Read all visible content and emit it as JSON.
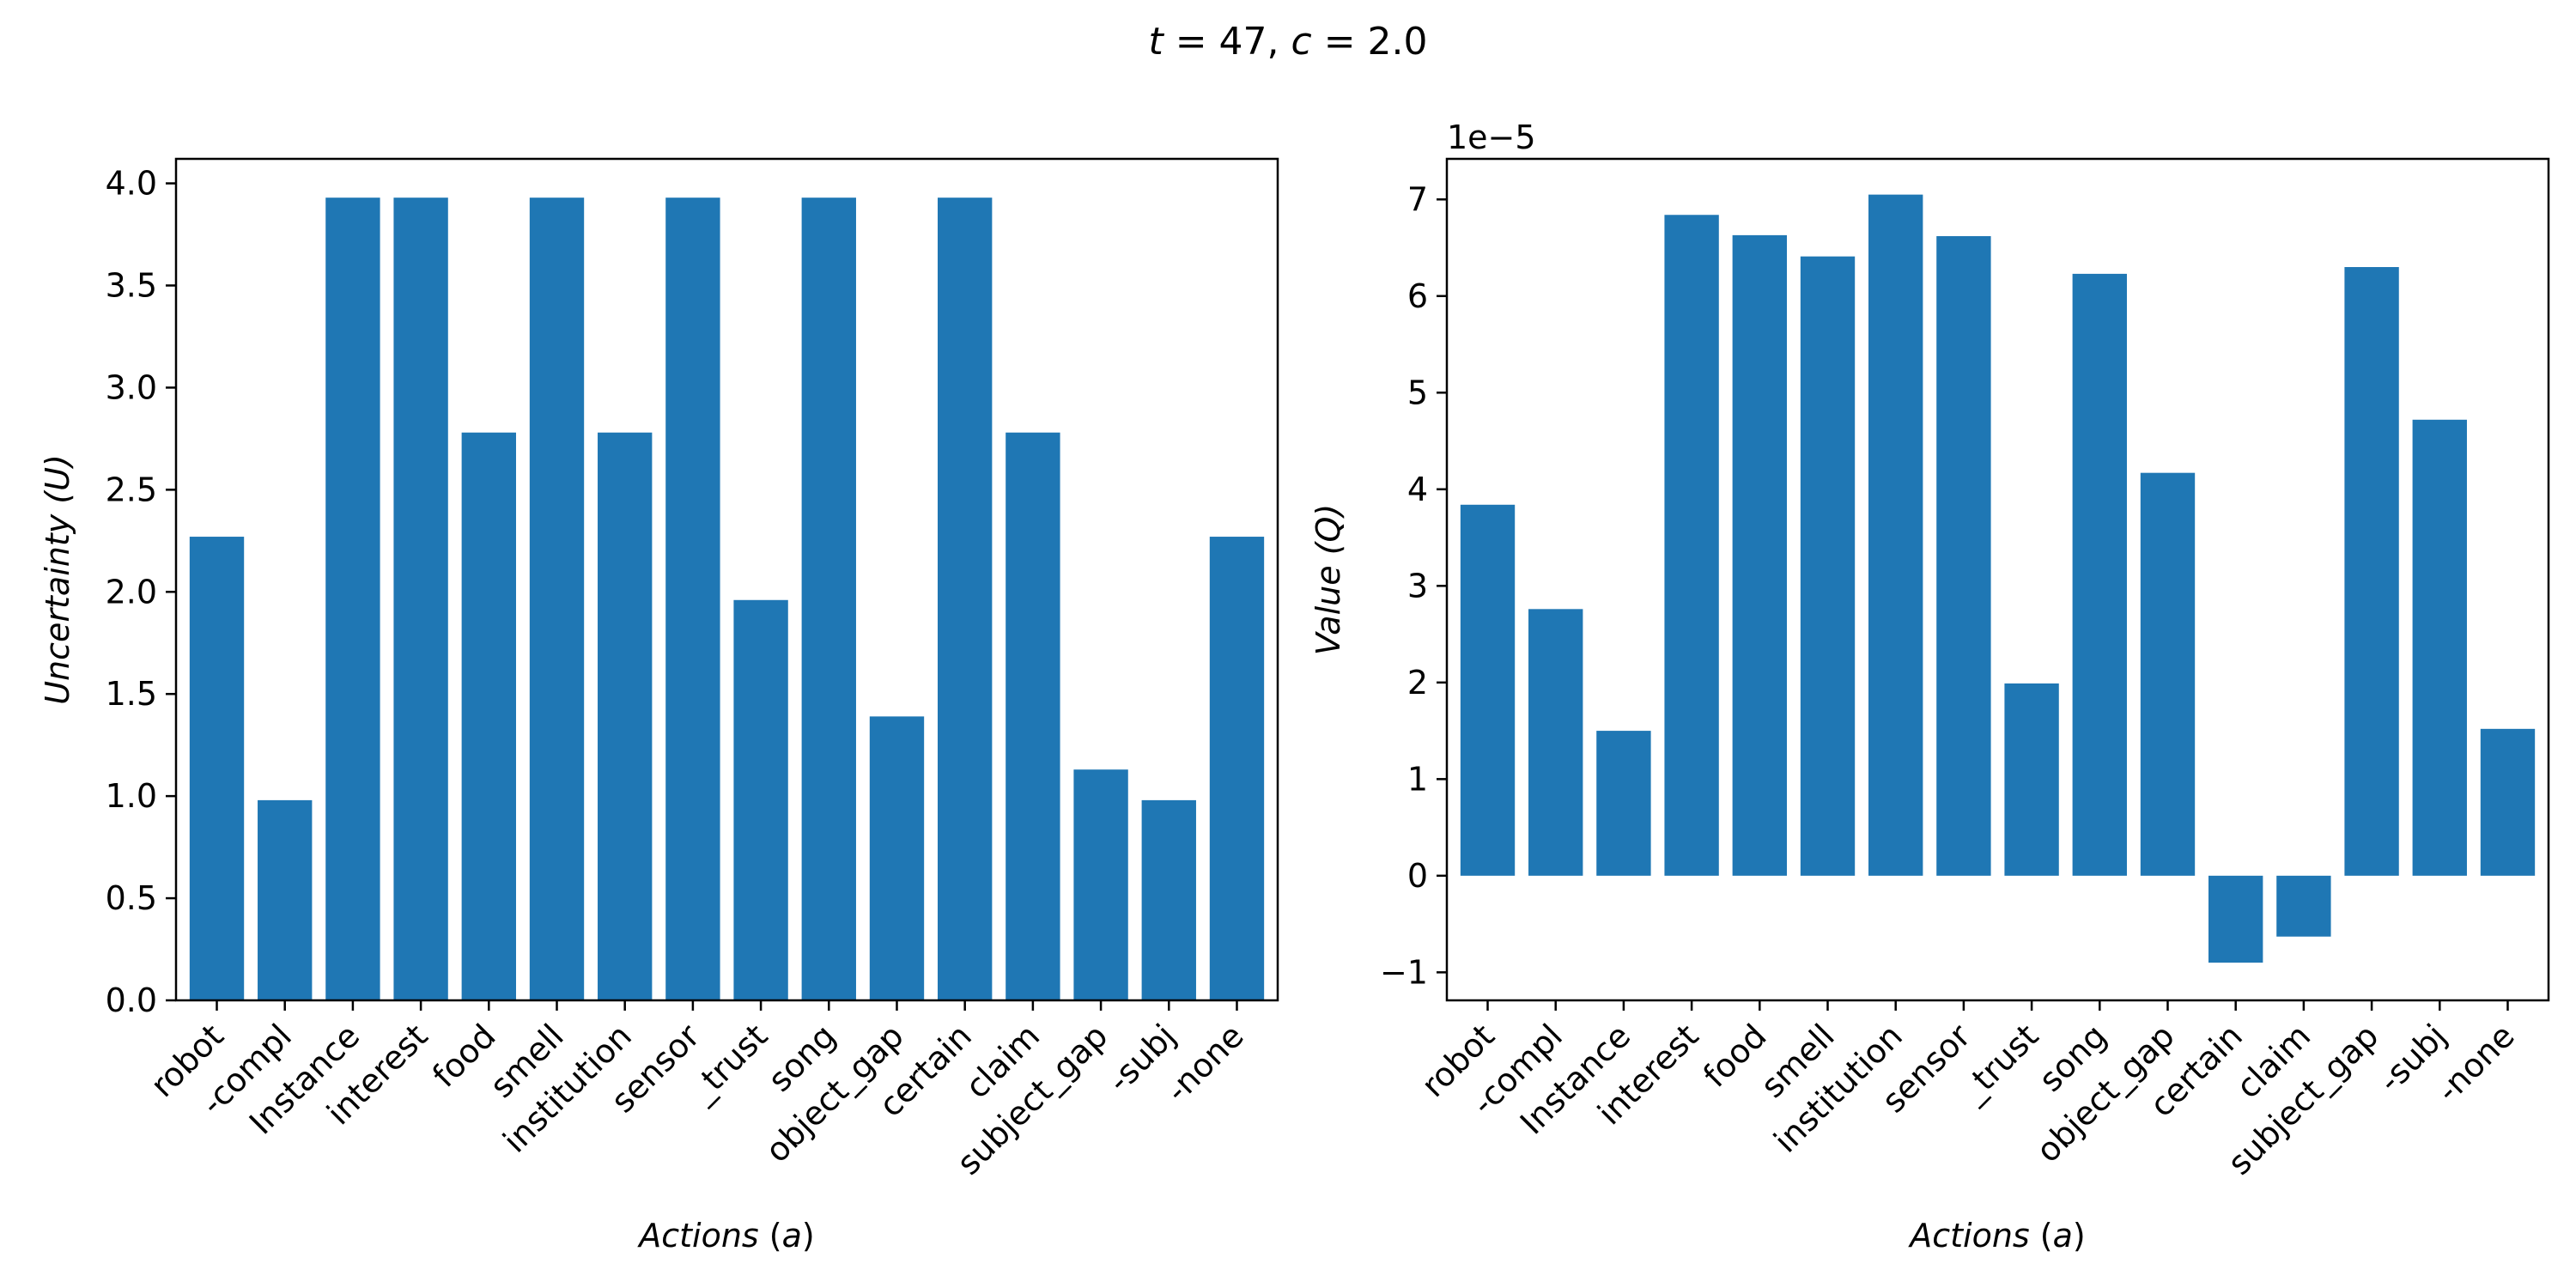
{
  "figure": {
    "suptitle": {
      "t_var": "t",
      "t_val": " = 47, ",
      "c_var": "c",
      "c_val": " = 2.0"
    }
  },
  "colors": {
    "bar": "#1f77b4",
    "axis": "#000000",
    "background": "#ffffff"
  },
  "chart_data": [
    {
      "type": "bar",
      "title": "",
      "xlabel": {
        "main": "Actions",
        "paren_open": " (",
        "sym": "a",
        "paren_close": ")"
      },
      "ylabel": {
        "main": "Uncertainty",
        "paren_open": " (",
        "sym": "U",
        "paren_close": ")"
      },
      "categories": [
        "robot",
        "-compl",
        "Instance",
        "interest",
        "food",
        "smell",
        "institution",
        "sensor",
        "_trust",
        "song",
        "object_gap",
        "certain",
        "claim",
        "subject_gap",
        "-subj",
        "-none"
      ],
      "values": [
        2.27,
        0.98,
        3.93,
        3.93,
        2.78,
        3.93,
        2.78,
        3.93,
        1.96,
        3.93,
        1.39,
        3.93,
        2.78,
        1.13,
        0.98,
        2.27
      ],
      "ylim": [
        0,
        4.12
      ],
      "yticks": [
        0.0,
        0.5,
        1.0,
        1.5,
        2.0,
        2.5,
        3.0,
        3.5,
        4.0
      ],
      "ytick_labels": [
        "0.0",
        "0.5",
        "1.0",
        "1.5",
        "2.0",
        "2.5",
        "3.0",
        "3.5",
        "4.0"
      ],
      "offset_text": "",
      "grid": false,
      "legend": "none"
    },
    {
      "type": "bar",
      "title": "",
      "xlabel": {
        "main": "Actions",
        "paren_open": " (",
        "sym": "a",
        "paren_close": ")"
      },
      "ylabel": {
        "main": "Value",
        "paren_open": " (",
        "sym": "Q",
        "paren_close": ")"
      },
      "categories": [
        "robot",
        "-compl",
        "Instance",
        "interest",
        "food",
        "smell",
        "institution",
        "sensor",
        "_trust",
        "song",
        "object_gap",
        "certain",
        "claim",
        "subject_gap",
        "-subj",
        "-none"
      ],
      "values": [
        3.84e-05,
        2.76e-05,
        1.5e-05,
        6.84e-05,
        6.63e-05,
        6.41e-05,
        7.05e-05,
        6.62e-05,
        1.99e-05,
        6.23e-05,
        4.17e-05,
        -9e-06,
        -6.3e-06,
        6.3e-05,
        4.72e-05,
        1.52e-05
      ],
      "ylim": [
        -1.29e-05,
        7.42e-05
      ],
      "yticks": [
        -1e-05,
        0,
        1e-05,
        2e-05,
        3e-05,
        4e-05,
        5e-05,
        6e-05,
        7e-05
      ],
      "ytick_labels": [
        "−1",
        "0",
        "1",
        "2",
        "3",
        "4",
        "5",
        "6",
        "7"
      ],
      "offset_text": "1e−5",
      "grid": false,
      "legend": "none"
    }
  ]
}
